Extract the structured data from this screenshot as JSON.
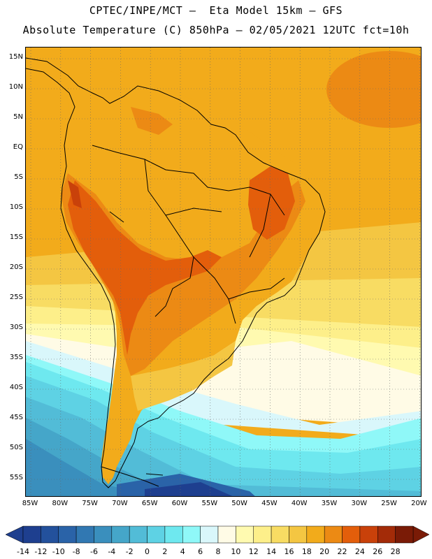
{
  "header": {
    "line1": "CPTEC/INPE/MCT –  Eta Model 15km – GFS",
    "line2": "Absolute Temperature (C) 850hPa – 02/05/2021 12UTC fct=10h"
  },
  "map": {
    "variable": "Absolute Temperature",
    "unit": "C",
    "level": "850hPa",
    "lat_labels": [
      "15N",
      "10N",
      "5N",
      "EQ",
      "5S",
      "10S",
      "15S",
      "20S",
      "25S",
      "30S",
      "35S",
      "40S",
      "45S",
      "50S",
      "55S"
    ],
    "lon_labels": [
      "85W",
      "80W",
      "75W",
      "70W",
      "65W",
      "60W",
      "55W",
      "50W",
      "45W",
      "40W",
      "35W",
      "30W",
      "25W",
      "20W"
    ],
    "lon_range": [
      -85.5,
      -20.5
    ],
    "lat_range": [
      16.5,
      -58
    ]
  },
  "colorbar": {
    "labels": [
      "-14",
      "-12",
      "-10",
      "-8",
      "-6",
      "-4",
      "-2",
      "0",
      "2",
      "4",
      "6",
      "8",
      "10",
      "12",
      "14",
      "16",
      "18",
      "20",
      "22",
      "24",
      "26",
      "28"
    ],
    "colors": [
      "#1e3f8f",
      "#23519c",
      "#2a63a8",
      "#3178b2",
      "#3a8fbd",
      "#45a6c9",
      "#52bcd7",
      "#5ed2e4",
      "#6ee8ef",
      "#8ff8f8",
      "#d9f7fb",
      "#fffbe6",
      "#fffab0",
      "#fdef8a",
      "#f8dc63",
      "#f4c642",
      "#f2ab1b",
      "#ec8a14",
      "#e35e0b",
      "#c9410a",
      "#a32b08",
      "#7a1b06"
    ],
    "low_cap": "#1e3f8f",
    "high_cap": "#7a1b06"
  }
}
